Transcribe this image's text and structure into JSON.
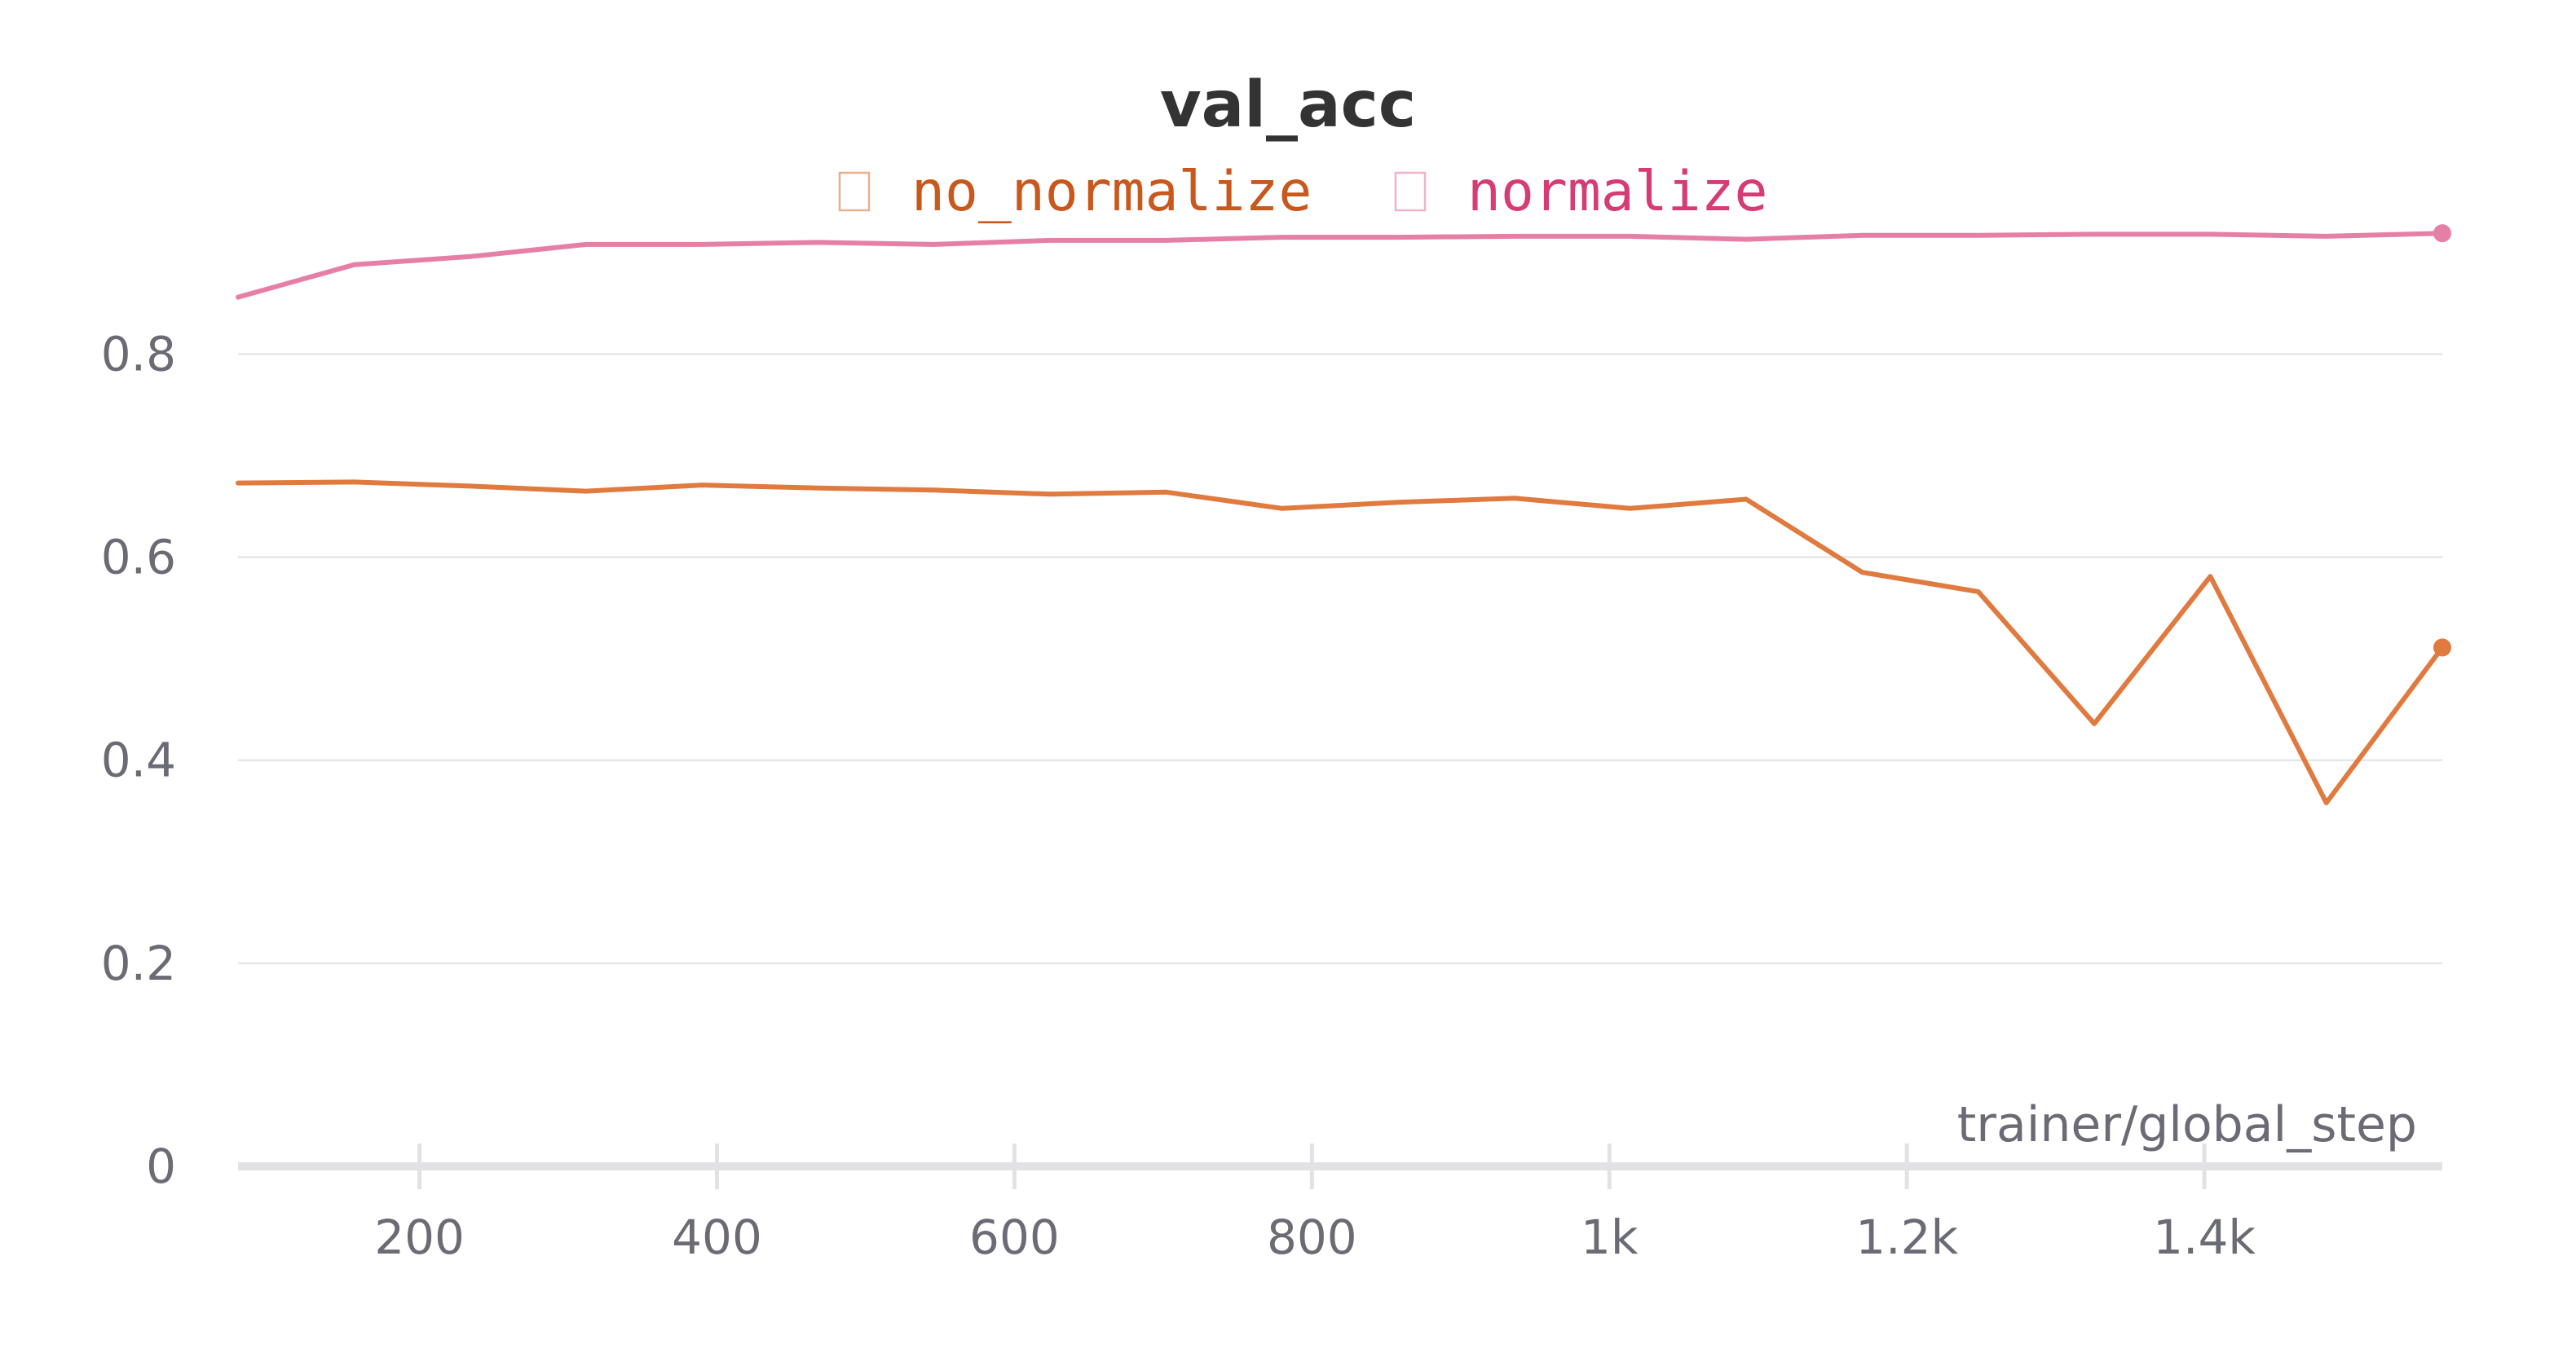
{
  "chart_data": {
    "type": "line",
    "title": "val_acc",
    "xlabel": "trainer/global_step",
    "ylabel": "",
    "xlim": [
      78,
      1560
    ],
    "ylim": [
      0,
      0.94
    ],
    "x_ticks": [
      200,
      400,
      600,
      800,
      1000,
      1200,
      1400
    ],
    "x_tick_labels": [
      "200",
      "400",
      "600",
      "800",
      "1k",
      "1.2k",
      "1.4k"
    ],
    "y_ticks": [
      0,
      0.2,
      0.4,
      0.6,
      0.8
    ],
    "y_tick_labels": [
      "0",
      "0.2",
      "0.4",
      "0.6",
      "0.8"
    ],
    "grid": true,
    "legend_position": "top-center",
    "series": [
      {
        "name": "no_normalize",
        "color": "#e07a3f",
        "legend_color": "#c8581c",
        "x": [
          78,
          156,
          234,
          312,
          390,
          468,
          546,
          624,
          702,
          780,
          858,
          936,
          1014,
          1092,
          1170,
          1248,
          1326,
          1404,
          1482,
          1560
        ],
        "y": [
          0.673,
          0.674,
          0.67,
          0.665,
          0.671,
          0.668,
          0.666,
          0.662,
          0.664,
          0.648,
          0.654,
          0.658,
          0.648,
          0.657,
          0.585,
          0.566,
          0.436,
          0.581,
          0.358,
          0.511
        ]
      },
      {
        "name": "normalize",
        "color": "#e67fa6",
        "legend_color": "#d63b73",
        "x": [
          78,
          156,
          234,
          312,
          390,
          468,
          546,
          624,
          702,
          780,
          858,
          936,
          1014,
          1092,
          1170,
          1248,
          1326,
          1404,
          1482,
          1560
        ],
        "y": [
          0.856,
          0.888,
          0.896,
          0.908,
          0.908,
          0.91,
          0.908,
          0.912,
          0.912,
          0.915,
          0.915,
          0.916,
          0.916,
          0.913,
          0.917,
          0.917,
          0.918,
          0.918,
          0.916,
          0.919
        ]
      }
    ]
  }
}
